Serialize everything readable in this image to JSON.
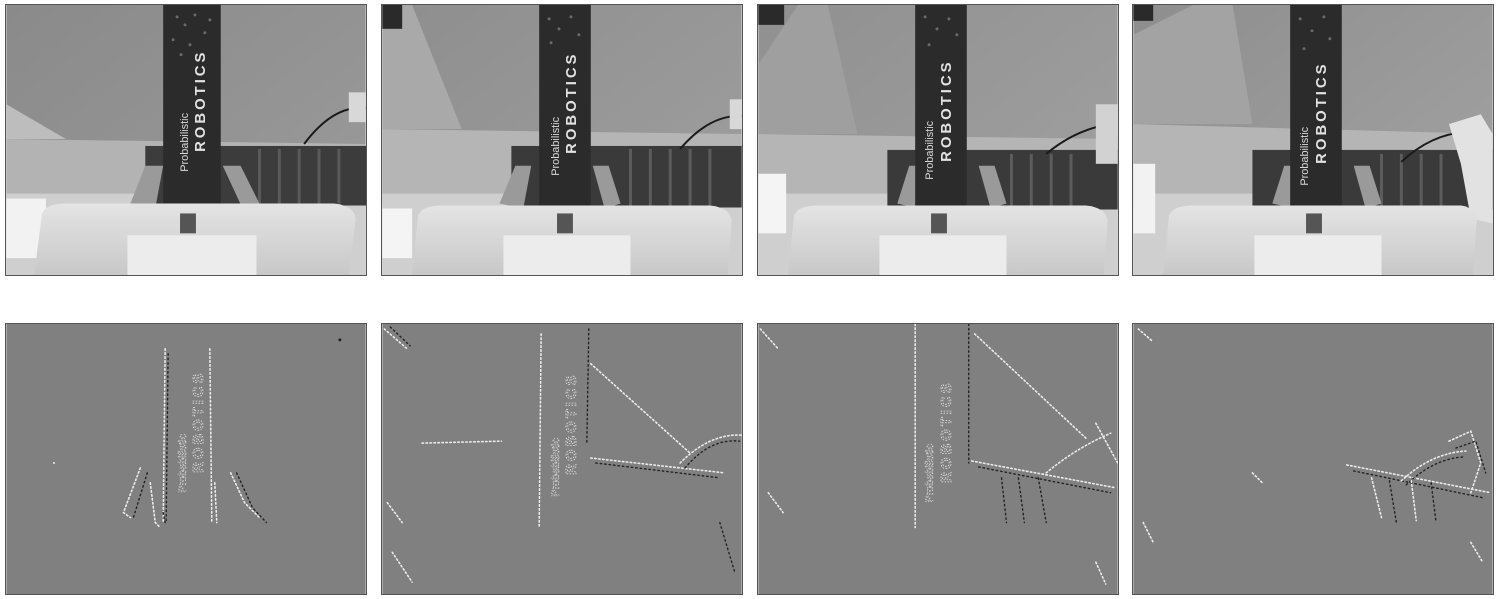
{
  "book": {
    "line1": "Probabilistic",
    "line2": "ROBOTICS"
  },
  "colors": {
    "background": "#ffffff",
    "event_background": "#808080",
    "book_cover": "#2a2a2a",
    "wall": "#8f8f8f"
  },
  "panels": [
    {
      "row": "camera",
      "index": 1
    },
    {
      "row": "camera",
      "index": 2
    },
    {
      "row": "camera",
      "index": 3
    },
    {
      "row": "camera",
      "index": 4
    },
    {
      "row": "events",
      "index": 1
    },
    {
      "row": "events",
      "index": 2
    },
    {
      "row": "events",
      "index": 3
    },
    {
      "row": "events",
      "index": 4
    }
  ]
}
